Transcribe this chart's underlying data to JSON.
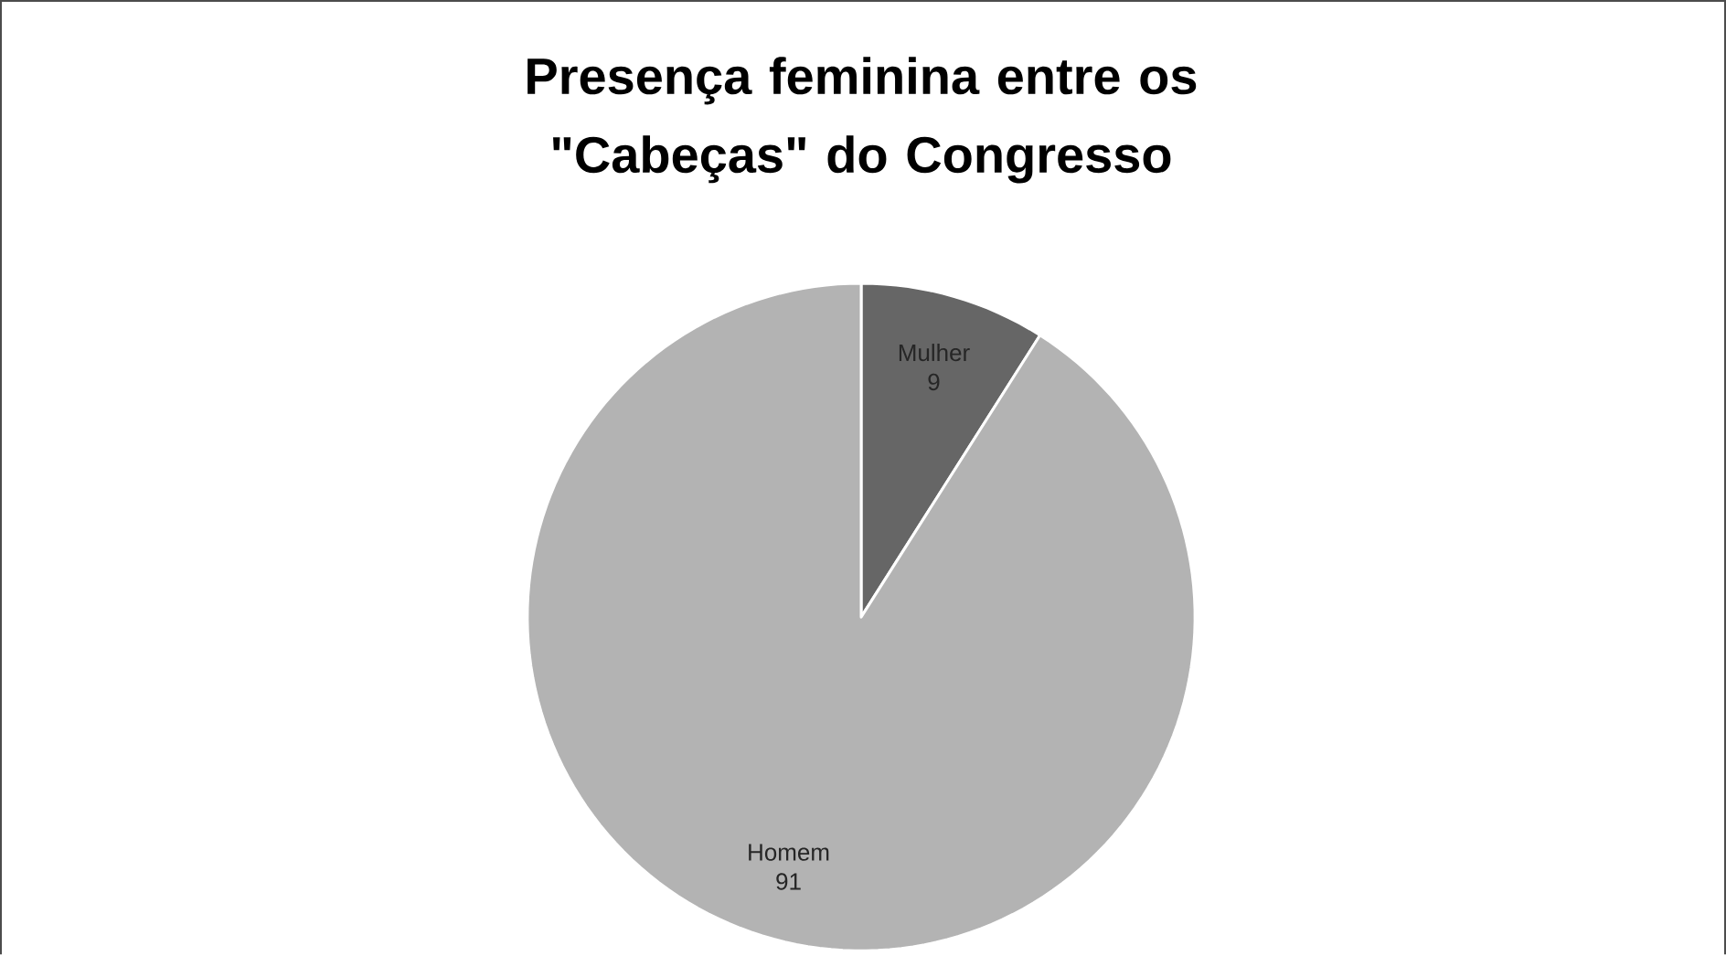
{
  "chart_data": {
    "type": "pie",
    "title": "Presença feminina entre os \"Cabeças\" do Congresso",
    "categories": [
      "Mulher",
      "Homem"
    ],
    "values": [
      9,
      91
    ],
    "colors": [
      "#666666",
      "#b3b3b3"
    ],
    "data_labels": true
  }
}
